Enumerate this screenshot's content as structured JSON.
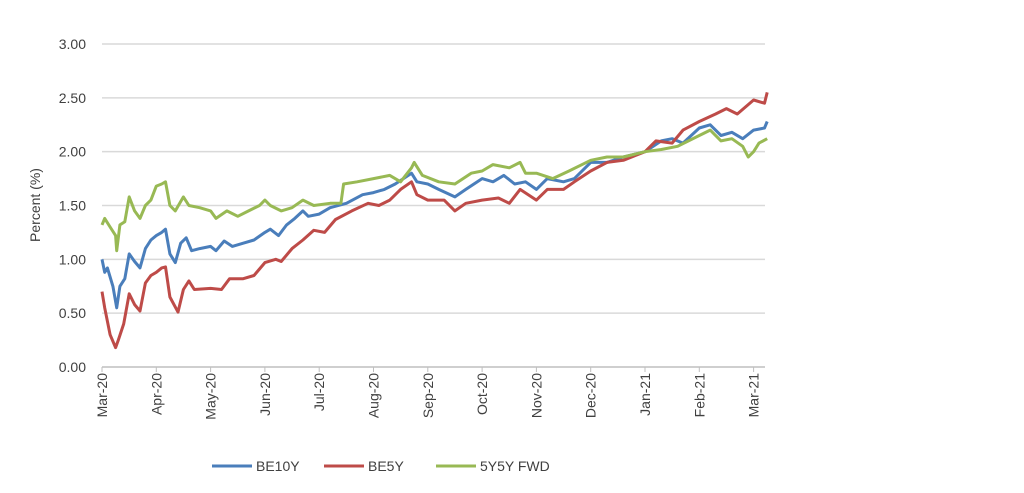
{
  "chart_data": {
    "type": "line",
    "title": "",
    "xlabel": "",
    "ylabel": "Percent (%)",
    "ylim": [
      0,
      3
    ],
    "yticks": [
      "0.00",
      "0.50",
      "1.00",
      "1.50",
      "2.00",
      "2.50",
      "3.00"
    ],
    "xticks": [
      "Mar-20",
      "Apr-20",
      "May-20",
      "Jun-20",
      "Jul-20",
      "Aug-20",
      "Sep-20",
      "Oct-20",
      "Nov-20",
      "Dec-20",
      "Jan-21",
      "Feb-21",
      "Mar-21"
    ],
    "x_unit": "months since Mar-20",
    "xlim": [
      0,
      12.25
    ],
    "grid": "horizontal",
    "legend_position": "bottom",
    "series": [
      {
        "name": "BE10Y",
        "color": "#4a7ebb",
        "points": [
          [
            0,
            1.0
          ],
          [
            0.05,
            0.88
          ],
          [
            0.1,
            0.92
          ],
          [
            0.2,
            0.75
          ],
          [
            0.27,
            0.55
          ],
          [
            0.33,
            0.75
          ],
          [
            0.42,
            0.82
          ],
          [
            0.5,
            1.05
          ],
          [
            0.6,
            0.98
          ],
          [
            0.7,
            0.92
          ],
          [
            0.8,
            1.1
          ],
          [
            0.9,
            1.18
          ],
          [
            1.0,
            1.22
          ],
          [
            1.1,
            1.25
          ],
          [
            1.17,
            1.28
          ],
          [
            1.25,
            1.05
          ],
          [
            1.35,
            0.97
          ],
          [
            1.45,
            1.15
          ],
          [
            1.55,
            1.2
          ],
          [
            1.65,
            1.08
          ],
          [
            1.8,
            1.1
          ],
          [
            2.0,
            1.12
          ],
          [
            2.1,
            1.08
          ],
          [
            2.25,
            1.17
          ],
          [
            2.4,
            1.12
          ],
          [
            2.6,
            1.15
          ],
          [
            2.8,
            1.18
          ],
          [
            3.0,
            1.25
          ],
          [
            3.1,
            1.28
          ],
          [
            3.25,
            1.22
          ],
          [
            3.4,
            1.32
          ],
          [
            3.55,
            1.38
          ],
          [
            3.7,
            1.45
          ],
          [
            3.8,
            1.4
          ],
          [
            4.0,
            1.42
          ],
          [
            4.2,
            1.48
          ],
          [
            4.5,
            1.52
          ],
          [
            4.8,
            1.6
          ],
          [
            5.0,
            1.62
          ],
          [
            5.2,
            1.65
          ],
          [
            5.4,
            1.7
          ],
          [
            5.55,
            1.75
          ],
          [
            5.7,
            1.8
          ],
          [
            5.8,
            1.72
          ],
          [
            6.0,
            1.7
          ],
          [
            6.2,
            1.65
          ],
          [
            6.5,
            1.58
          ],
          [
            6.7,
            1.65
          ],
          [
            7.0,
            1.75
          ],
          [
            7.2,
            1.72
          ],
          [
            7.4,
            1.78
          ],
          [
            7.6,
            1.7
          ],
          [
            7.8,
            1.72
          ],
          [
            8.0,
            1.65
          ],
          [
            8.2,
            1.75
          ],
          [
            8.5,
            1.72
          ],
          [
            8.7,
            1.75
          ],
          [
            9.0,
            1.9
          ],
          [
            9.3,
            1.9
          ],
          [
            9.6,
            1.95
          ],
          [
            10.0,
            2.0
          ],
          [
            10.3,
            2.1
          ],
          [
            10.5,
            2.12
          ],
          [
            10.7,
            2.08
          ],
          [
            11.0,
            2.22
          ],
          [
            11.2,
            2.25
          ],
          [
            11.4,
            2.15
          ],
          [
            11.6,
            2.18
          ],
          [
            11.8,
            2.12
          ],
          [
            12.0,
            2.2
          ],
          [
            12.2,
            2.22
          ],
          [
            12.25,
            2.28
          ]
        ]
      },
      {
        "name": "BE5Y",
        "color": "#be4b48",
        "points": [
          [
            0,
            0.7
          ],
          [
            0.05,
            0.55
          ],
          [
            0.15,
            0.3
          ],
          [
            0.25,
            0.18
          ],
          [
            0.3,
            0.25
          ],
          [
            0.4,
            0.4
          ],
          [
            0.5,
            0.68
          ],
          [
            0.6,
            0.58
          ],
          [
            0.7,
            0.52
          ],
          [
            0.8,
            0.78
          ],
          [
            0.9,
            0.85
          ],
          [
            1.0,
            0.88
          ],
          [
            1.1,
            0.92
          ],
          [
            1.17,
            0.93
          ],
          [
            1.25,
            0.65
          ],
          [
            1.4,
            0.51
          ],
          [
            1.5,
            0.72
          ],
          [
            1.6,
            0.8
          ],
          [
            1.7,
            0.72
          ],
          [
            2.0,
            0.73
          ],
          [
            2.2,
            0.72
          ],
          [
            2.35,
            0.82
          ],
          [
            2.6,
            0.82
          ],
          [
            2.8,
            0.85
          ],
          [
            3.0,
            0.97
          ],
          [
            3.2,
            1.0
          ],
          [
            3.3,
            0.98
          ],
          [
            3.5,
            1.1
          ],
          [
            3.7,
            1.18
          ],
          [
            3.9,
            1.27
          ],
          [
            4.1,
            1.25
          ],
          [
            4.3,
            1.37
          ],
          [
            4.6,
            1.45
          ],
          [
            4.9,
            1.52
          ],
          [
            5.1,
            1.5
          ],
          [
            5.3,
            1.55
          ],
          [
            5.5,
            1.65
          ],
          [
            5.7,
            1.72
          ],
          [
            5.8,
            1.6
          ],
          [
            6.0,
            1.55
          ],
          [
            6.3,
            1.55
          ],
          [
            6.5,
            1.45
          ],
          [
            6.7,
            1.52
          ],
          [
            7.0,
            1.55
          ],
          [
            7.3,
            1.57
          ],
          [
            7.5,
            1.52
          ],
          [
            7.7,
            1.65
          ],
          [
            8.0,
            1.55
          ],
          [
            8.2,
            1.65
          ],
          [
            8.5,
            1.65
          ],
          [
            8.7,
            1.72
          ],
          [
            9.0,
            1.82
          ],
          [
            9.3,
            1.9
          ],
          [
            9.6,
            1.92
          ],
          [
            10.0,
            2.0
          ],
          [
            10.2,
            2.1
          ],
          [
            10.5,
            2.08
          ],
          [
            10.7,
            2.2
          ],
          [
            11.0,
            2.28
          ],
          [
            11.3,
            2.35
          ],
          [
            11.5,
            2.4
          ],
          [
            11.7,
            2.35
          ],
          [
            12.0,
            2.48
          ],
          [
            12.2,
            2.45
          ],
          [
            12.25,
            2.55
          ]
        ]
      },
      {
        "name": "5Y5Y FWD",
        "color": "#98b954",
        "points": [
          [
            0,
            1.32
          ],
          [
            0.05,
            1.38
          ],
          [
            0.15,
            1.3
          ],
          [
            0.25,
            1.22
          ],
          [
            0.27,
            1.08
          ],
          [
            0.33,
            1.32
          ],
          [
            0.42,
            1.35
          ],
          [
            0.5,
            1.58
          ],
          [
            0.6,
            1.45
          ],
          [
            0.7,
            1.38
          ],
          [
            0.8,
            1.5
          ],
          [
            0.9,
            1.55
          ],
          [
            1.0,
            1.68
          ],
          [
            1.1,
            1.7
          ],
          [
            1.17,
            1.72
          ],
          [
            1.25,
            1.5
          ],
          [
            1.35,
            1.45
          ],
          [
            1.5,
            1.58
          ],
          [
            1.6,
            1.5
          ],
          [
            1.8,
            1.48
          ],
          [
            2.0,
            1.45
          ],
          [
            2.1,
            1.38
          ],
          [
            2.3,
            1.45
          ],
          [
            2.5,
            1.4
          ],
          [
            2.7,
            1.45
          ],
          [
            2.9,
            1.5
          ],
          [
            3.0,
            1.55
          ],
          [
            3.1,
            1.5
          ],
          [
            3.3,
            1.45
          ],
          [
            3.5,
            1.48
          ],
          [
            3.7,
            1.55
          ],
          [
            3.9,
            1.5
          ],
          [
            4.2,
            1.52
          ],
          [
            4.4,
            1.52
          ],
          [
            4.45,
            1.7
          ],
          [
            4.7,
            1.72
          ],
          [
            5.0,
            1.75
          ],
          [
            5.3,
            1.78
          ],
          [
            5.5,
            1.72
          ],
          [
            5.7,
            1.85
          ],
          [
            5.75,
            1.9
          ],
          [
            5.9,
            1.78
          ],
          [
            6.2,
            1.72
          ],
          [
            6.5,
            1.7
          ],
          [
            6.8,
            1.8
          ],
          [
            7.0,
            1.82
          ],
          [
            7.2,
            1.88
          ],
          [
            7.5,
            1.85
          ],
          [
            7.7,
            1.9
          ],
          [
            7.8,
            1.8
          ],
          [
            8.0,
            1.8
          ],
          [
            8.3,
            1.75
          ],
          [
            8.6,
            1.82
          ],
          [
            9.0,
            1.92
          ],
          [
            9.3,
            1.95
          ],
          [
            9.6,
            1.95
          ],
          [
            10.0,
            2.0
          ],
          [
            10.3,
            2.02
          ],
          [
            10.6,
            2.05
          ],
          [
            11.0,
            2.15
          ],
          [
            11.2,
            2.2
          ],
          [
            11.4,
            2.1
          ],
          [
            11.6,
            2.12
          ],
          [
            11.8,
            2.05
          ],
          [
            11.9,
            1.95
          ],
          [
            12.0,
            2.0
          ],
          [
            12.1,
            2.08
          ],
          [
            12.25,
            2.12
          ]
        ]
      }
    ]
  }
}
